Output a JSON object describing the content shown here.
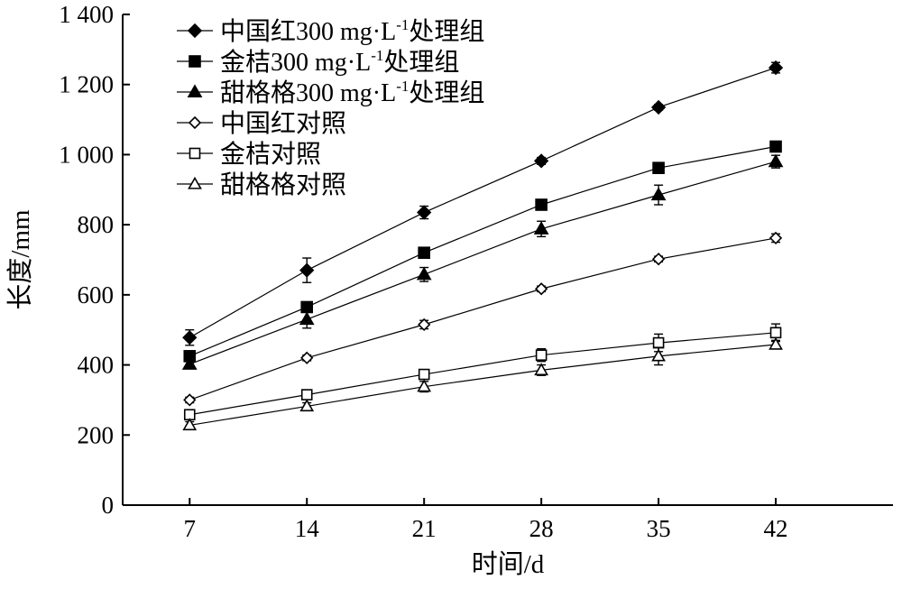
{
  "chart_data": {
    "type": "line",
    "xlabel": "时间/d",
    "ylabel": "长度/mm",
    "x": [
      7,
      14,
      21,
      28,
      35,
      42
    ],
    "x_tick_labels": [
      "7",
      "14",
      "21",
      "28",
      "35",
      "42"
    ],
    "xlim": [
      3,
      49
    ],
    "ylim": [
      0,
      1400
    ],
    "y_ticks": [
      0,
      200,
      400,
      600,
      800,
      1000,
      1200,
      1400
    ],
    "y_tick_labels": [
      "0",
      "200",
      "400",
      "600",
      "800",
      "1 000",
      "1 200",
      "1 400"
    ],
    "grid": false,
    "legend_position": "top-left",
    "series": [
      {
        "name": "中国红300 mg·L-1处理组",
        "name_main": "中国红300 mg·L",
        "name_sup": "-1",
        "name_tail": "处理组",
        "marker": "diamond",
        "filled": true,
        "values": [
          478,
          670,
          835,
          982,
          1135,
          1248
        ],
        "errors": [
          22,
          35,
          18,
          10,
          8,
          15
        ]
      },
      {
        "name": "金桔300 mg·L-1处理组",
        "name_main": "金桔300 mg·L",
        "name_sup": "-1",
        "name_tail": "处理组",
        "marker": "square",
        "filled": true,
        "values": [
          425,
          565,
          720,
          857,
          962,
          1023
        ],
        "errors": [
          15,
          8,
          10,
          14,
          15,
          10
        ]
      },
      {
        "name": "甜格格300 mg·L-1处理组",
        "name_main": "甜格格300 mg·L",
        "name_sup": "-1",
        "name_tail": "处理组",
        "marker": "triangle",
        "filled": true,
        "values": [
          402,
          530,
          658,
          788,
          885,
          980
        ],
        "errors": [
          12,
          25,
          20,
          22,
          28,
          18
        ]
      },
      {
        "name": "中国红对照",
        "marker": "diamond",
        "filled": false,
        "values": [
          300,
          420,
          515,
          617,
          702,
          762
        ],
        "errors": [
          8,
          8,
          12,
          8,
          8,
          12
        ]
      },
      {
        "name": "金桔对照",
        "marker": "square",
        "filled": false,
        "values": [
          258,
          315,
          373,
          428,
          463,
          492
        ],
        "errors": [
          10,
          10,
          10,
          18,
          25,
          25
        ]
      },
      {
        "name": "甜格格对照",
        "marker": "triangle",
        "filled": false,
        "values": [
          228,
          282,
          338,
          385,
          425,
          458
        ],
        "errors": [
          10,
          10,
          15,
          15,
          25,
          12
        ]
      }
    ]
  }
}
